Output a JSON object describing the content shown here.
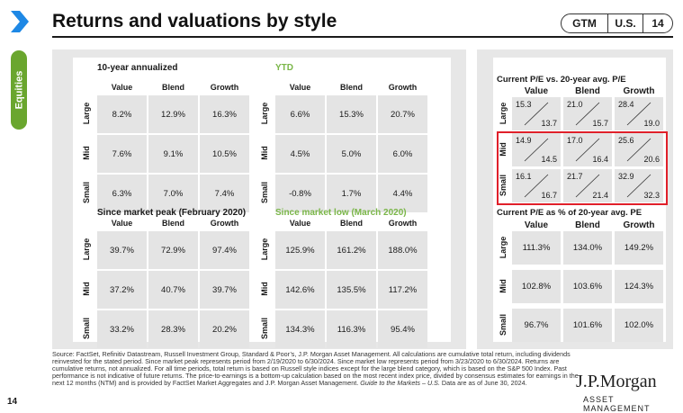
{
  "header": {
    "title": "Returns and valuations by style",
    "tag_gtm": "GTM",
    "tag_region": "U.S.",
    "tag_page": "14"
  },
  "sidebar": {
    "tab_label": "Equities",
    "page_number": "14"
  },
  "columns": [
    "Value",
    "Blend",
    "Growth"
  ],
  "rows": [
    "Large",
    "Mid",
    "Small"
  ],
  "ten_year": {
    "title": "10-year annualized",
    "values": [
      [
        "8.2%",
        "12.9%",
        "16.3%"
      ],
      [
        "7.6%",
        "9.1%",
        "10.5%"
      ],
      [
        "6.3%",
        "7.0%",
        "7.4%"
      ]
    ]
  },
  "ytd": {
    "title": "YTD",
    "values": [
      [
        "6.6%",
        "15.3%",
        "20.7%"
      ],
      [
        "4.5%",
        "5.0%",
        "6.0%"
      ],
      [
        "-0.8%",
        "1.7%",
        "4.4%"
      ]
    ]
  },
  "since_peak": {
    "title": "Since market peak (February 2020)",
    "values": [
      [
        "39.7%",
        "72.9%",
        "97.4%"
      ],
      [
        "37.2%",
        "40.7%",
        "39.7%"
      ],
      [
        "33.2%",
        "28.3%",
        "20.2%"
      ]
    ]
  },
  "since_low": {
    "title": "Since market low (March 2020)",
    "values": [
      [
        "125.9%",
        "161.2%",
        "188.0%"
      ],
      [
        "142.6%",
        "135.5%",
        "117.2%"
      ],
      [
        "134.3%",
        "116.3%",
        "95.4%"
      ]
    ]
  },
  "pe": {
    "title": "Current P/E vs. 20-year avg. P/E",
    "current": [
      [
        "15.3",
        "21.0",
        "28.4"
      ],
      [
        "14.9",
        "17.0",
        "25.6"
      ],
      [
        "16.1",
        "21.7",
        "32.9"
      ]
    ],
    "average": [
      [
        "13.7",
        "15.7",
        "19.0"
      ],
      [
        "14.5",
        "16.4",
        "20.6"
      ],
      [
        "16.7",
        "21.4",
        "32.3"
      ]
    ]
  },
  "pe_pct": {
    "title": "Current P/E as % of 20-year avg. PE",
    "values": [
      [
        "111.3%",
        "134.0%",
        "149.2%"
      ],
      [
        "102.8%",
        "103.6%",
        "124.3%"
      ],
      [
        "96.7%",
        "101.6%",
        "102.0%"
      ]
    ]
  },
  "footnote": {
    "text": "Source: FactSet, Refinitiv Datastream, Russell Investment Group, Standard & Poor’s, J.P. Morgan Asset Management. All calculations are cumulative total return, including dividends reinvested for the stated period. Since market peak represents period from 2/19/2020 to 6/30/2024. Since market low represents period from 3/23/2020 to 6/30/2024. Returns are cumulative returns, not annualized. For all time periods, total return is based on Russell style indices except for the large blend category, which is based on the S&P 500 Index. Past performance is not indicative of future returns. The price-to-earnings is a bottom-up calculation based on the most recent index price, divided by consensus estimates for earnings in the next 12 months (NTM) and is provided by FactSet Market Aggregates and J.P. Morgan Asset Management.",
    "italic": "Guide to the Markets – U.S.",
    "tail": " Data are as of June 30, 2024."
  },
  "logo": {
    "name": "J.P.Morgan",
    "sub": "ASSET MANAGEMENT"
  },
  "colors": {
    "accent_green": "#7ab648",
    "tab_green": "#6aa62e",
    "chevron_blue": "#1e88e5",
    "highlight_red": "#e0202a"
  }
}
